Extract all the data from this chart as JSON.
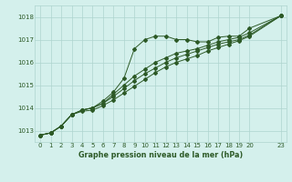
{
  "title": "Graphe pression niveau de la mer (hPa)",
  "bg_color": "#d4f0ec",
  "grid_color": "#aed4ce",
  "line_color": "#2d5a27",
  "xlim": [
    -0.5,
    23.5
  ],
  "ylim": [
    1012.5,
    1018.5
  ],
  "yticks": [
    1013,
    1014,
    1015,
    1016,
    1017,
    1018
  ],
  "xticks": [
    0,
    1,
    2,
    3,
    4,
    5,
    6,
    7,
    8,
    9,
    10,
    11,
    12,
    13,
    14,
    15,
    16,
    17,
    18,
    19,
    20,
    23
  ],
  "series1_x": [
    0,
    1,
    2,
    3,
    4,
    5,
    6,
    7,
    8,
    9,
    10,
    11,
    12,
    13,
    14,
    15,
    16,
    17,
    18,
    19,
    20,
    23
  ],
  "series1_y": [
    1012.8,
    1012.9,
    1013.2,
    1013.7,
    1013.9,
    1014.0,
    1014.3,
    1014.7,
    1015.3,
    1016.6,
    1017.0,
    1017.15,
    1017.15,
    1017.0,
    1017.0,
    1016.9,
    1016.9,
    1017.1,
    1017.15,
    1017.15,
    1017.5,
    1018.05
  ],
  "series2_x": [
    0,
    1,
    2,
    3,
    4,
    5,
    6,
    7,
    8,
    9,
    10,
    11,
    12,
    13,
    14,
    15,
    16,
    17,
    18,
    19,
    20,
    23
  ],
  "series2_y": [
    1012.8,
    1012.9,
    1013.2,
    1013.7,
    1013.9,
    1014.0,
    1014.2,
    1014.6,
    1015.0,
    1015.4,
    1015.7,
    1016.0,
    1016.2,
    1016.4,
    1016.5,
    1016.6,
    1016.75,
    1016.9,
    1017.0,
    1017.1,
    1017.3,
    1018.05
  ],
  "series3_x": [
    0,
    1,
    2,
    3,
    4,
    5,
    6,
    7,
    8,
    9,
    10,
    11,
    12,
    13,
    14,
    15,
    16,
    17,
    18,
    19,
    20,
    23
  ],
  "series3_y": [
    1012.8,
    1012.9,
    1013.2,
    1013.7,
    1013.9,
    1014.0,
    1014.2,
    1014.5,
    1014.85,
    1015.2,
    1015.5,
    1015.75,
    1016.0,
    1016.2,
    1016.35,
    1016.5,
    1016.65,
    1016.8,
    1016.9,
    1017.0,
    1017.2,
    1018.05
  ],
  "series4_x": [
    0,
    1,
    2,
    3,
    4,
    5,
    6,
    7,
    8,
    9,
    10,
    11,
    12,
    13,
    14,
    15,
    16,
    17,
    18,
    19,
    20,
    23
  ],
  "series4_y": [
    1012.8,
    1012.9,
    1013.2,
    1013.7,
    1013.85,
    1013.9,
    1014.1,
    1014.35,
    1014.65,
    1014.95,
    1015.25,
    1015.55,
    1015.8,
    1016.0,
    1016.15,
    1016.3,
    1016.5,
    1016.65,
    1016.8,
    1016.95,
    1017.15,
    1018.05
  ],
  "title_fontsize": 5.8,
  "tick_fontsize": 5.0
}
